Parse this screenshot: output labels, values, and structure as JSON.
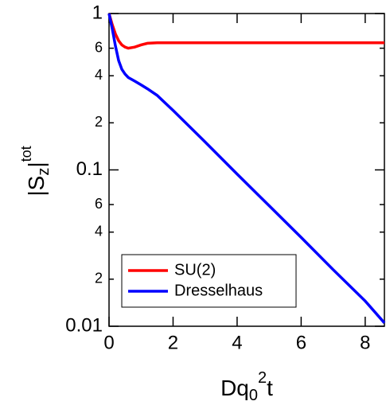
{
  "chart_data": {
    "type": "line",
    "xlabel": {
      "main": "Dq",
      "sub": "0",
      "sup": "2",
      "end": "t"
    },
    "ylabel": {
      "main": "|S",
      "sub": "z",
      "end": "|",
      "sup": "tot"
    },
    "x": [
      0,
      0.1,
      0.2,
      0.3,
      0.4,
      0.5,
      0.6,
      0.8,
      1,
      1.2,
      1.5,
      2,
      3,
      4,
      5,
      6,
      7,
      8,
      8.6
    ],
    "series": [
      {
        "name": "SU(2)",
        "color": "#ff0000",
        "values": [
          1,
          0.85,
          0.74,
          0.67,
          0.63,
          0.61,
          0.6,
          0.61,
          0.63,
          0.645,
          0.65,
          0.65,
          0.65,
          0.65,
          0.65,
          0.65,
          0.65,
          0.65,
          0.65
        ]
      },
      {
        "name": "Dresselhaus",
        "color": "#0000ff",
        "values": [
          1,
          0.8,
          0.62,
          0.5,
          0.44,
          0.41,
          0.39,
          0.37,
          0.35,
          0.33,
          0.3,
          0.24,
          0.151,
          0.094,
          0.059,
          0.037,
          0.023,
          0.0145,
          0.0105
        ]
      }
    ],
    "xlim": [
      0,
      8.6
    ],
    "xticks": [
      0,
      2,
      4,
      6,
      8
    ],
    "ylim": [
      0.01,
      1
    ],
    "yticks": [
      0.01,
      {
        "value": 0.02,
        "label": "2"
      },
      {
        "value": 0.04,
        "label": "4"
      },
      {
        "value": 0.06,
        "label": "6"
      },
      0.1,
      {
        "value": 0.2,
        "label": "2"
      },
      {
        "value": 0.4,
        "label": "4"
      },
      {
        "value": 0.6,
        "label": "6"
      },
      1
    ],
    "ylog": true,
    "legend": "lower left"
  }
}
